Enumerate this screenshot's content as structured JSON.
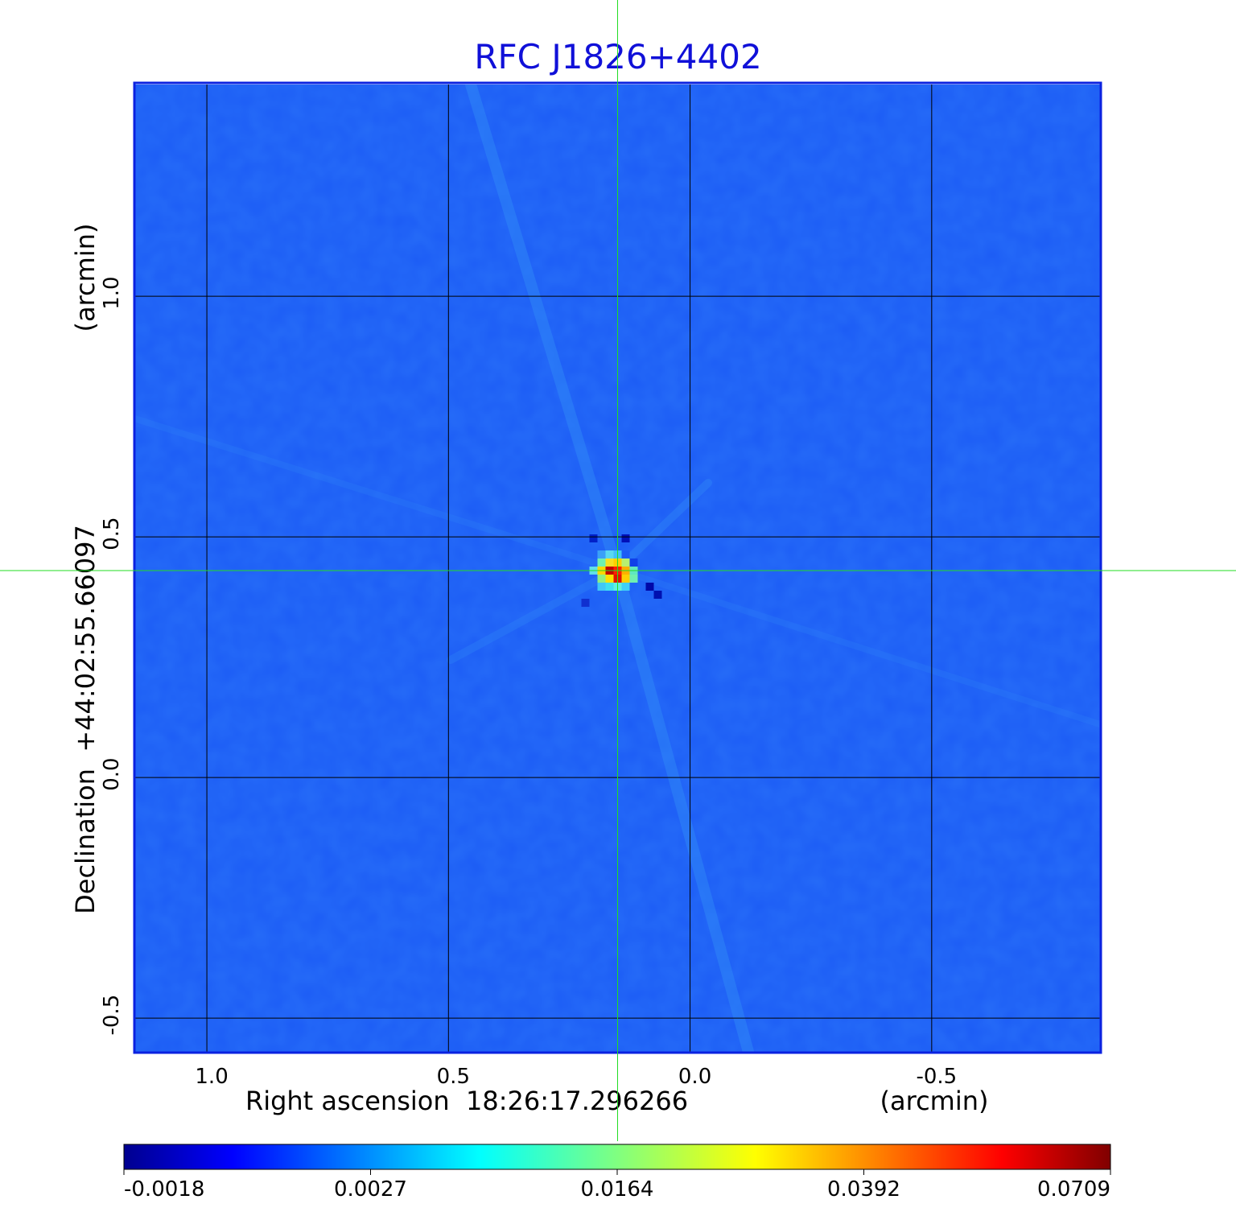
{
  "chart_data": {
    "type": "heatmap",
    "title": "RFC J1826+4402",
    "xlabel": "Right ascension  18:26:17.296266",
    "xunit": "(arcmin)",
    "ylabel": "Declination  +44:02:55.66097",
    "yunit": "(arcmin)",
    "xlim": [
      1.15,
      -0.85
    ],
    "ylim": [
      -0.57,
      1.44
    ],
    "x_ticks": [
      1.0,
      0.5,
      0.0,
      -0.5
    ],
    "x_tick_labels": [
      "1.0",
      "0.5",
      "0.0",
      "-0.5"
    ],
    "y_ticks": [
      -0.5,
      0.0,
      0.5,
      1.0
    ],
    "y_tick_labels": [
      "-0.5",
      "0.0",
      "0.5",
      "1.0"
    ],
    "grid": true,
    "crosshair": {
      "x": 0.15,
      "y": 0.43,
      "color": "#22dd22"
    },
    "peak": {
      "x": 0.15,
      "y": 0.43,
      "value": 0.0709
    },
    "colorbar": {
      "ticks": [
        -0.0018,
        0.0027,
        0.0164,
        0.0392,
        0.0709
      ],
      "tick_labels": [
        "-0.0018",
        "0.0027",
        "0.0164",
        "0.0392",
        "0.0709"
      ],
      "colormap": "jet"
    }
  },
  "colors": {
    "title": "#1010d8",
    "frame": "#0b22e0",
    "background_map": "#1c5cf5",
    "grid": "#000000"
  }
}
